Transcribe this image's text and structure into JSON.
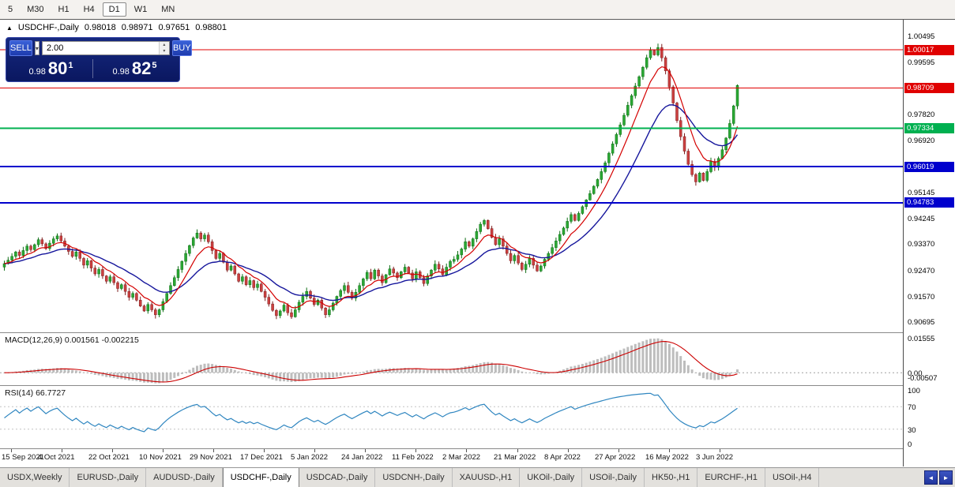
{
  "toolbar": {
    "timeframes": [
      {
        "label": "5",
        "active": false
      },
      {
        "label": "M30",
        "active": false
      },
      {
        "label": "H1",
        "active": false
      },
      {
        "label": "H4",
        "active": false
      },
      {
        "label": "D1",
        "active": true
      },
      {
        "label": "W1",
        "active": false
      },
      {
        "label": "MN",
        "active": false
      }
    ]
  },
  "chart_header": {
    "marker": "▲",
    "symbol": "USDCHF-,Daily",
    "open": "0.98018",
    "high": "0.98971",
    "low": "0.97651",
    "close": "0.98801"
  },
  "trade_panel": {
    "sell_label": "SELL",
    "buy_label": "BUY",
    "volume": "2.00",
    "sell_price": {
      "prefix": "0.98",
      "big": "80",
      "sup": "1"
    },
    "buy_price": {
      "prefix": "0.98",
      "big": "82",
      "sup": "5"
    }
  },
  "icons": {
    "dropdown_caret": "▾",
    "spin_up": "▴",
    "spin_down": "▾"
  },
  "price_axis": {
    "ticks": [
      "1.00495",
      "0.99595",
      "0.97820",
      "0.96920",
      "0.95145",
      "0.94245",
      "0.93370",
      "0.92470",
      "0.91570",
      "0.90695"
    ],
    "levels": [
      {
        "label": "1.00017",
        "price": 1.00017,
        "color": "#e00000",
        "width": 1
      },
      {
        "label": "0.98709",
        "price": 0.98709,
        "color": "#e00000",
        "width": 1
      },
      {
        "label": "0.97334",
        "price": 0.97334,
        "color": "#00b050",
        "width": 2
      },
      {
        "label": "0.96019",
        "price": 0.96019,
        "color": "#0000cd",
        "width": 2
      },
      {
        "label": "0.94783",
        "price": 0.94783,
        "color": "#0000cd",
        "width": 2
      }
    ]
  },
  "macd_panel": {
    "label": "MACD(12,26,9) 0.001561 -0.002215",
    "axis": [
      "0.01555",
      "0.00",
      "-0.00507"
    ]
  },
  "rsi_panel": {
    "label": "RSI(14) 66.7727",
    "axis": [
      "100",
      "70",
      "30",
      "0"
    ]
  },
  "time_axis": [
    "15 Sep 2021",
    "4 Oct 2021",
    "22 Oct 2021",
    "10 Nov 2021",
    "29 Nov 2021",
    "17 Dec 2021",
    "5 Jan 2022",
    "24 Jan 2022",
    "11 Feb 2022",
    "2 Mar 2022",
    "21 Mar 2022",
    "8 Apr 2022",
    "27 Apr 2022",
    "16 May 2022",
    "3 Jun 2022"
  ],
  "tabs": {
    "items": [
      {
        "label": "USDX,Weekly",
        "active": false
      },
      {
        "label": "EURUSD-,Daily",
        "active": false
      },
      {
        "label": "AUDUSD-,Daily",
        "active": false
      },
      {
        "label": "USDCHF-,Daily",
        "active": true
      },
      {
        "label": "USDCAD-,Daily",
        "active": false
      },
      {
        "label": "USDCNH-,Daily",
        "active": false
      },
      {
        "label": "XAUUSD-,H1",
        "active": false
      },
      {
        "label": "UKOil-,Daily",
        "active": false
      },
      {
        "label": "USOil-,Daily",
        "active": false
      },
      {
        "label": "HK50-,H1",
        "active": false
      },
      {
        "label": "EURCHF-,H1",
        "active": false
      },
      {
        "label": "USOil-,H4",
        "active": false
      }
    ],
    "scroll_left": "◄",
    "scroll_right": "►"
  },
  "chart_data": {
    "type": "candlestick",
    "symbol": "USDCHF",
    "timeframe": "Daily",
    "title": "USDCHF-,Daily",
    "current_ohlc": {
      "open": 0.98018,
      "high": 0.98971,
      "low": 0.97651,
      "close": 0.98801
    },
    "price_range": [
      0.9035,
      1.0105
    ],
    "levels": [
      1.00017,
      0.98709,
      0.97334,
      0.96019,
      0.94783
    ],
    "macd_values": {
      "main": 0.001561,
      "signal": -0.002215
    },
    "rsi_value": 66.7727,
    "closes": [
      0.927,
      0.9282,
      0.9295,
      0.931,
      0.9298,
      0.9315,
      0.933,
      0.9318,
      0.9335,
      0.9352,
      0.9338,
      0.9322,
      0.934,
      0.9355,
      0.9365,
      0.9348,
      0.933,
      0.9312,
      0.9295,
      0.931,
      0.9288,
      0.9265,
      0.928,
      0.9255,
      0.9235,
      0.925,
      0.9228,
      0.921,
      0.9225,
      0.9205,
      0.9185,
      0.9198,
      0.9175,
      0.9155,
      0.9168,
      0.9145,
      0.9125,
      0.9108,
      0.913,
      0.9112,
      0.9095,
      0.9112,
      0.914,
      0.9168,
      0.9195,
      0.9222,
      0.925,
      0.9278,
      0.9305,
      0.9332,
      0.9358,
      0.9375,
      0.9355,
      0.9368,
      0.9345,
      0.9315,
      0.9288,
      0.9305,
      0.9275,
      0.9248,
      0.9262,
      0.9235,
      0.921,
      0.9225,
      0.9198,
      0.9212,
      0.9188,
      0.92,
      0.9175,
      0.9155,
      0.9132,
      0.911,
      0.9092,
      0.9108,
      0.9128,
      0.9102,
      0.9088,
      0.9112,
      0.9138,
      0.9158,
      0.9175,
      0.9152,
      0.913,
      0.9145,
      0.9118,
      0.9095,
      0.9112,
      0.9135,
      0.9158,
      0.9178,
      0.9195,
      0.9172,
      0.9152,
      0.9172,
      0.9195,
      0.9218,
      0.924,
      0.9218,
      0.9248,
      0.9228,
      0.9205,
      0.9232,
      0.9252,
      0.9238,
      0.9222,
      0.9242,
      0.9258,
      0.9238,
      0.9218,
      0.9242,
      0.9222,
      0.9202,
      0.9228,
      0.9248,
      0.9268,
      0.9252,
      0.9232,
      0.9258,
      0.9278,
      0.9285,
      0.93,
      0.932,
      0.9345,
      0.933,
      0.9355,
      0.938,
      0.9405,
      0.9418,
      0.939,
      0.936,
      0.9335,
      0.9355,
      0.933,
      0.9305,
      0.928,
      0.9298,
      0.9272,
      0.925,
      0.9268,
      0.9288,
      0.9265,
      0.9245,
      0.9262,
      0.9285,
      0.9305,
      0.9325,
      0.9348,
      0.937,
      0.9392,
      0.9415,
      0.9438,
      0.9418,
      0.9442,
      0.9465,
      0.9488,
      0.951,
      0.9535,
      0.9558,
      0.9585,
      0.9615,
      0.9648,
      0.968,
      0.9712,
      0.9745,
      0.9778,
      0.9812,
      0.9845,
      0.9878,
      0.991,
      0.9942,
      0.9975,
      1.0,
      0.9985,
      1.001,
      0.9975,
      0.993,
      0.9875,
      0.982,
      0.976,
      0.9705,
      0.9655,
      0.961,
      0.9575,
      0.955,
      0.958,
      0.9555,
      0.9585,
      0.962,
      0.96,
      0.963,
      0.966,
      0.97,
      0.975,
      0.981,
      0.988
    ],
    "colors": {
      "bull": "#2ba834",
      "bull_edge": "#0d6e14",
      "bear": "#cc4040",
      "bear_edge": "#7e1f1f",
      "ma_fast": "#d40000",
      "ma_slow": "#16169c",
      "macd_hist": "#bdbdbd",
      "macd_signal": "#cc0000",
      "rsi_line": "#2f86c0"
    }
  }
}
